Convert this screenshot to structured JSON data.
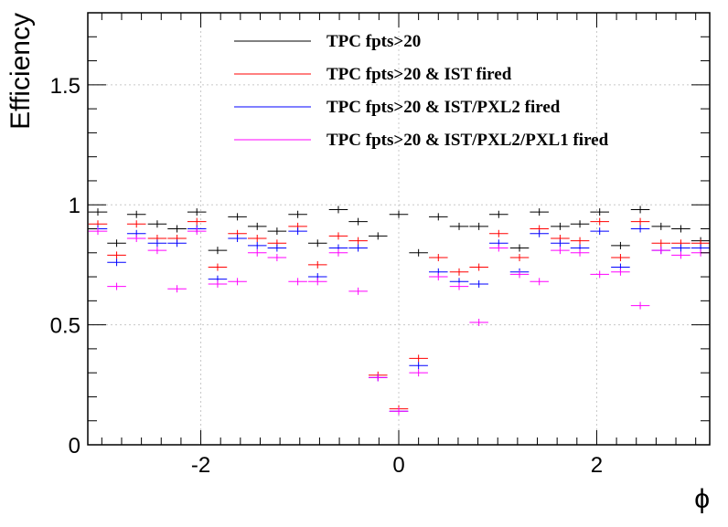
{
  "chart_data": {
    "type": "scatter",
    "title": "",
    "xlabel": "ϕ",
    "ylabel": "Efficiency",
    "xlim": [
      -3.1416,
      3.1416
    ],
    "ylim": [
      0,
      1.8
    ],
    "grid": true,
    "legend_position": "top",
    "x_ticks": [
      -2,
      0,
      2
    ],
    "x_tick_labels": [
      "-2",
      "0",
      "2"
    ],
    "y_ticks": [
      0,
      0.5,
      1,
      1.5
    ],
    "y_tick_labels": [
      "0",
      "0.5",
      "1",
      "1.5"
    ],
    "x": [
      -3.04,
      -2.85,
      -2.65,
      -2.44,
      -2.24,
      -2.04,
      -1.83,
      -1.63,
      -1.43,
      -1.23,
      -1.02,
      -0.82,
      -0.61,
      -0.41,
      -0.21,
      0.0,
      0.2,
      0.4,
      0.61,
      0.81,
      1.01,
      1.22,
      1.42,
      1.63,
      1.83,
      2.03,
      2.24,
      2.44,
      2.65,
      2.85,
      3.05
    ],
    "series": [
      {
        "name": "TPC fpts>20",
        "color": "#000000",
        "values": [
          0.97,
          0.84,
          0.96,
          0.92,
          0.9,
          0.97,
          0.81,
          0.95,
          0.91,
          0.89,
          0.96,
          0.84,
          0.98,
          0.93,
          0.87,
          0.96,
          0.8,
          0.95,
          0.91,
          0.91,
          0.96,
          0.82,
          0.97,
          0.91,
          0.92,
          0.97,
          0.83,
          0.98,
          0.91,
          0.9,
          0.85
        ]
      },
      {
        "name": "TPC fpts>20 & IST fired",
        "color": "#ff0000",
        "values": [
          0.92,
          0.79,
          0.92,
          0.86,
          0.86,
          0.93,
          0.74,
          0.88,
          0.86,
          0.84,
          0.91,
          0.75,
          0.87,
          0.85,
          0.29,
          0.15,
          0.36,
          0.78,
          0.72,
          0.74,
          0.88,
          0.78,
          0.9,
          0.86,
          0.85,
          0.93,
          0.78,
          0.93,
          0.84,
          0.84,
          0.84
        ]
      },
      {
        "name": "TPC fpts>20 & IST/PXL2 fired",
        "color": "#0000ff",
        "values": [
          0.9,
          0.76,
          0.88,
          0.84,
          0.84,
          0.9,
          0.69,
          0.86,
          0.83,
          0.82,
          0.89,
          0.7,
          0.82,
          0.82,
          0.28,
          0.14,
          0.33,
          0.72,
          0.68,
          0.67,
          0.84,
          0.72,
          0.88,
          0.84,
          0.82,
          0.89,
          0.74,
          0.9,
          0.81,
          0.82,
          0.82
        ]
      },
      {
        "name": "TPC fpts>20 & IST/PXL2/PXL1 fired",
        "color": "#ff00ff",
        "values": [
          0.89,
          0.66,
          0.86,
          0.81,
          0.65,
          0.89,
          0.67,
          0.68,
          0.8,
          0.78,
          0.68,
          0.68,
          0.8,
          0.64,
          0.28,
          0.14,
          0.3,
          0.7,
          0.66,
          0.51,
          0.82,
          0.71,
          0.68,
          0.81,
          0.8,
          0.71,
          0.72,
          0.58,
          0.81,
          0.79,
          0.8
        ]
      }
    ]
  }
}
